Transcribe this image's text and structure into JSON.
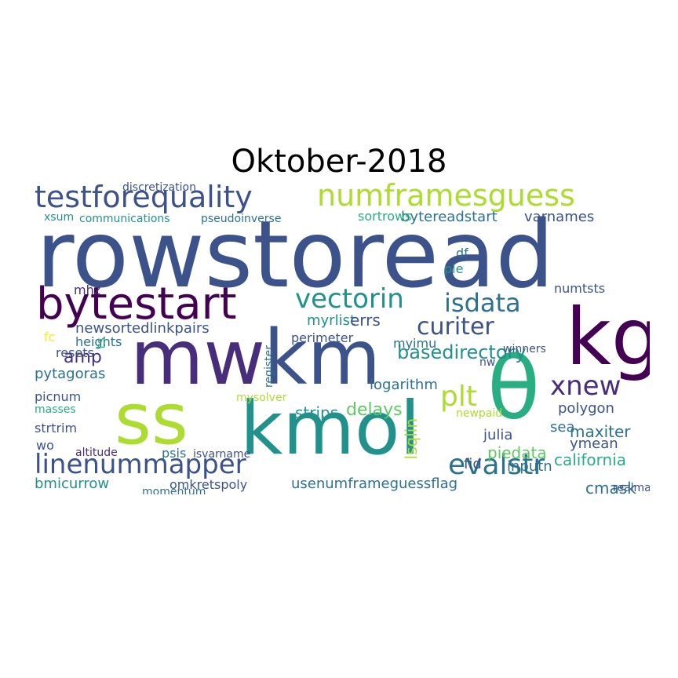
{
  "title": "Oktober-2018",
  "palette": {
    "dark_purple": "#440154",
    "purple": "#472d7b",
    "indigo": "#3b528b",
    "slate": "#2c728e",
    "teal": "#21918c",
    "sea_green": "#28ae80",
    "green": "#5ec962",
    "lime": "#addc30",
    "yellow": "#fde725"
  },
  "words": [
    {
      "text": "rowstoread",
      "size": "xl",
      "color": "indigo"
    },
    {
      "text": "kg",
      "size": "xl",
      "color": "dark_purple"
    },
    {
      "text": "mw",
      "size": "xl",
      "color": "purple"
    },
    {
      "text": "km",
      "size": "xl",
      "color": "indigo"
    },
    {
      "text": "ss",
      "size": "xl",
      "color": "lime"
    },
    {
      "text": "kmol",
      "size": "xl",
      "color": "teal"
    },
    {
      "text": "θ",
      "size": "xl",
      "color": "sea_green"
    },
    {
      "text": "bytestart",
      "size": "l",
      "color": "dark_purple"
    },
    {
      "text": "testforequality",
      "size": "l",
      "color": "indigo"
    },
    {
      "text": "numframesguess",
      "size": "l",
      "color": "lime"
    },
    {
      "text": "linenummapper",
      "size": "l",
      "color": "indigo"
    },
    {
      "text": "evalstr",
      "size": "l",
      "color": "slate"
    },
    {
      "text": "plt",
      "size": "l",
      "color": "lime"
    },
    {
      "text": "xnew",
      "size": "l",
      "color": "purple"
    },
    {
      "text": "vectorin",
      "size": "l",
      "color": "teal"
    },
    {
      "text": "isdata",
      "size": "l",
      "color": "slate"
    },
    {
      "text": "curiter",
      "size": "l",
      "color": "indigo"
    },
    {
      "text": "basedirectory",
      "size": "m",
      "color": "teal"
    },
    {
      "text": "newsortedlinkpairs",
      "size": "m",
      "color": "indigo"
    },
    {
      "text": "usenumframeguessflag",
      "size": "m",
      "color": "slate"
    },
    {
      "text": "bmicurrow",
      "size": "m",
      "color": "teal"
    },
    {
      "text": "omkretspoly",
      "size": "m",
      "color": "indigo"
    },
    {
      "text": "pytagoras",
      "size": "m",
      "color": "slate"
    },
    {
      "text": "amp",
      "size": "m",
      "color": "purple"
    },
    {
      "text": "myrlist",
      "size": "m",
      "color": "teal"
    },
    {
      "text": "errs",
      "size": "m",
      "color": "indigo"
    },
    {
      "text": "heights",
      "size": "m",
      "color": "slate"
    },
    {
      "text": "perimeter",
      "size": "m",
      "color": "indigo"
    },
    {
      "text": "strips",
      "size": "m",
      "color": "teal"
    },
    {
      "text": "delays",
      "size": "m",
      "color": "green"
    },
    {
      "text": "logarithm",
      "size": "m",
      "color": "slate"
    },
    {
      "text": "polygon",
      "size": "m",
      "color": "indigo"
    },
    {
      "text": "maxiter",
      "size": "m",
      "color": "slate"
    },
    {
      "text": "california",
      "size": "m",
      "color": "sea_green"
    },
    {
      "text": "cmask",
      "size": "m",
      "color": "slate"
    },
    {
      "text": "piedata",
      "size": "m",
      "color": "green"
    },
    {
      "text": "julia",
      "size": "m",
      "color": "indigo"
    },
    {
      "text": "inputn",
      "size": "m",
      "color": "slate"
    },
    {
      "text": "ymean",
      "size": "m",
      "color": "indigo"
    },
    {
      "text": "fid",
      "size": "m",
      "color": "indigo"
    },
    {
      "text": "sea",
      "size": "m",
      "color": "slate"
    },
    {
      "text": "lsqlin",
      "size": "m",
      "color": "lime"
    },
    {
      "text": "bytereadstart",
      "size": "m",
      "color": "slate"
    },
    {
      "text": "varnames",
      "size": "m",
      "color": "indigo"
    },
    {
      "text": "sortrows",
      "size": "m",
      "color": "sea_green"
    },
    {
      "text": "communications",
      "size": "s",
      "color": "teal"
    },
    {
      "text": "discretization",
      "size": "s",
      "color": "indigo"
    },
    {
      "text": "pseudoinverse",
      "size": "s",
      "color": "slate"
    },
    {
      "text": "xsum",
      "size": "s",
      "color": "teal"
    },
    {
      "text": "strtrim",
      "size": "s",
      "color": "indigo"
    },
    {
      "text": "resets",
      "size": "s",
      "color": "indigo"
    },
    {
      "text": "picnum",
      "size": "s",
      "color": "indigo"
    },
    {
      "text": "masses",
      "size": "s",
      "color": "sea_green"
    },
    {
      "text": "altitude",
      "size": "s",
      "color": "purple"
    },
    {
      "text": "psis",
      "size": "s",
      "color": "slate"
    },
    {
      "text": "isvarname",
      "size": "s",
      "color": "indigo"
    },
    {
      "text": "momentum",
      "size": "s",
      "color": "slate"
    },
    {
      "text": "mysolver",
      "size": "s",
      "color": "lime"
    },
    {
      "text": "register",
      "size": "s",
      "color": "slate"
    },
    {
      "text": "myimu",
      "size": "s",
      "color": "slate"
    },
    {
      "text": "numtsts",
      "size": "s",
      "color": "indigo"
    },
    {
      "text": "newpaid",
      "size": "s",
      "color": "lime"
    },
    {
      "text": "winners",
      "size": "s",
      "color": "indigo"
    },
    {
      "text": "realmax",
      "size": "s",
      "color": "indigo"
    },
    {
      "text": "mhz",
      "size": "s",
      "color": "purple"
    },
    {
      "text": "fc",
      "size": "s",
      "color": "yellow"
    },
    {
      "text": "wo",
      "size": "s",
      "color": "indigo"
    },
    {
      "text": "df",
      "size": "s",
      "color": "slate"
    },
    {
      "text": "pie",
      "size": "s",
      "color": "teal"
    },
    {
      "text": "ts",
      "size": "s",
      "color": "sea_green"
    },
    {
      "text": "nw",
      "size": "s",
      "color": "indigo"
    }
  ]
}
